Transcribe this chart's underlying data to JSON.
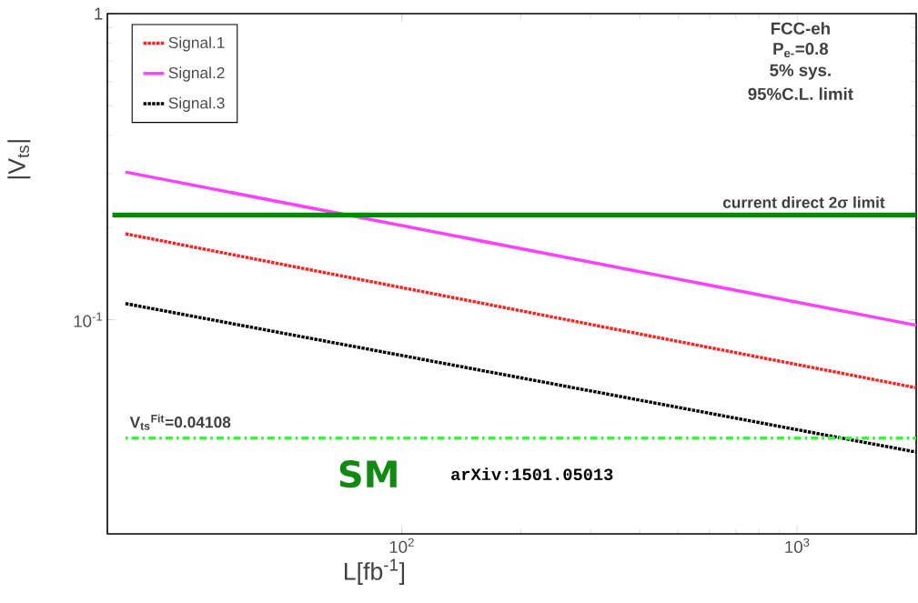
{
  "chart_data": {
    "type": "line",
    "xlabel": "L[fb$^{-1}$]",
    "ylabel": "|V$_{ts}$|",
    "log": "xy",
    "x": [
      20,
      2000
    ],
    "series": [
      {
        "name": "Signal.1",
        "color": "#ff2020",
        "line_style": "dotted",
        "values": [
          0.191,
          0.06
        ]
      },
      {
        "name": "Signal.2",
        "color": "#ff40ff",
        "line_style": "solid",
        "values": [
          0.304,
          0.096
        ]
      },
      {
        "name": "Signal.3",
        "color": "#000000",
        "line_style": "dotted",
        "values": [
          0.113,
          0.037
        ]
      }
    ],
    "xlim": [
      18,
      2000
    ],
    "ylim": [
      0.02,
      1
    ],
    "xticks": [
      {
        "value": 100,
        "label": "10$^{2}$"
      },
      {
        "value": 1000,
        "label": "10$^{3}$"
      }
    ],
    "yticks": [
      {
        "value": 0.1,
        "label": "10$^{-1}$"
      },
      {
        "value": 1,
        "label": "1"
      }
    ],
    "ref_lines": [
      {
        "axis": "y",
        "value": 0.22,
        "label": "current direct 2σ limit",
        "color": "#008a00",
        "line_style": "solid"
      },
      {
        "axis": "y",
        "value": 0.04108,
        "label": "V$_{ts}$$^{Fit}$=0.04108",
        "color": "#40f040",
        "line_style": "dotted"
      }
    ],
    "annotations": [
      "FCC-eh",
      "P$_{e-}$=0.8",
      "5% sys.",
      "95%C.L. limit",
      "SM",
      "arXiv:1501.05013"
    ],
    "legend": "top left",
    "marker": "none",
    "grid": false
  }
}
